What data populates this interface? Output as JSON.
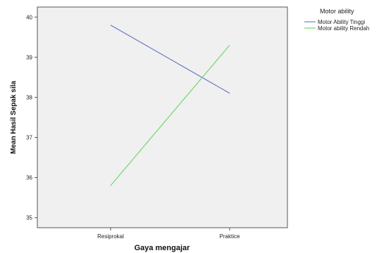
{
  "chart_data": {
    "type": "line",
    "xlabel": "Gaya mengajar",
    "ylabel": "Mean Hasil Sepak sila",
    "categories": [
      "Resiprokal",
      "Praktice"
    ],
    "ylim": [
      34.75,
      40.25
    ],
    "yticks": [
      35,
      36,
      37,
      38,
      39,
      40
    ],
    "grid": false,
    "legend": {
      "title": "Motor ability",
      "placement": "right"
    },
    "series": [
      {
        "name": "Motor Ability Tinggi",
        "values": [
          39.8,
          38.1
        ],
        "color": "#6f7fc9"
      },
      {
        "name": "Motor ability Rendah",
        "values": [
          35.8,
          39.3
        ],
        "color": "#6ed86e"
      }
    ],
    "plot_background": "#f0f0f0"
  }
}
